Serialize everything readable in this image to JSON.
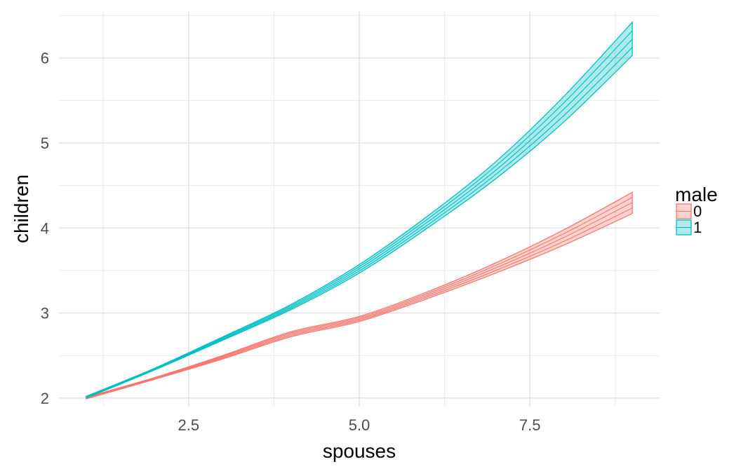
{
  "chart_data": {
    "type": "area",
    "xlabel": "spouses",
    "ylabel": "children",
    "xlim": [
      0.6,
      9.4
    ],
    "ylim": [
      1.9,
      6.55
    ],
    "x_ticks": [
      2.5,
      5.0,
      7.5
    ],
    "x_tick_labels": [
      "2.5",
      "5.0",
      "7.5"
    ],
    "x_minor_ticks": [
      1.25,
      3.75,
      6.25,
      8.75
    ],
    "y_ticks": [
      2,
      3,
      4,
      5,
      6
    ],
    "y_tick_labels": [
      "2",
      "3",
      "4",
      "5",
      "6"
    ],
    "y_minor_ticks": [
      2.5,
      3.5,
      4.5,
      5.5,
      6.5
    ],
    "grid": true,
    "legend": {
      "title": "male",
      "position": "right",
      "entries": [
        "0",
        "1"
      ]
    },
    "series": [
      {
        "name": "0",
        "color": "#F8766D",
        "fill": "#F8766D",
        "x": [
          1,
          2,
          3,
          4,
          5,
          6,
          7,
          8,
          9
        ],
        "y": [
          2.0,
          2.23,
          2.48,
          2.75,
          2.93,
          3.21,
          3.53,
          3.89,
          4.3
        ],
        "lower": [
          1.99,
          2.22,
          2.46,
          2.72,
          2.9,
          3.17,
          3.47,
          3.8,
          4.17
        ],
        "upper": [
          2.01,
          2.24,
          2.5,
          2.78,
          2.96,
          3.25,
          3.59,
          3.98,
          4.42
        ]
      },
      {
        "name": "1",
        "color": "#00BFC4",
        "fill": "#00BFC4",
        "x": [
          1,
          2,
          3,
          4,
          5,
          6,
          7,
          8,
          9
        ],
        "y": [
          2.01,
          2.34,
          2.7,
          3.07,
          3.52,
          4.07,
          4.68,
          5.4,
          6.22
        ],
        "lower": [
          2.0,
          2.33,
          2.68,
          3.04,
          3.47,
          4.0,
          4.58,
          5.25,
          6.03
        ],
        "upper": [
          2.02,
          2.35,
          2.72,
          3.1,
          3.57,
          4.14,
          4.78,
          5.55,
          6.42
        ]
      }
    ]
  }
}
